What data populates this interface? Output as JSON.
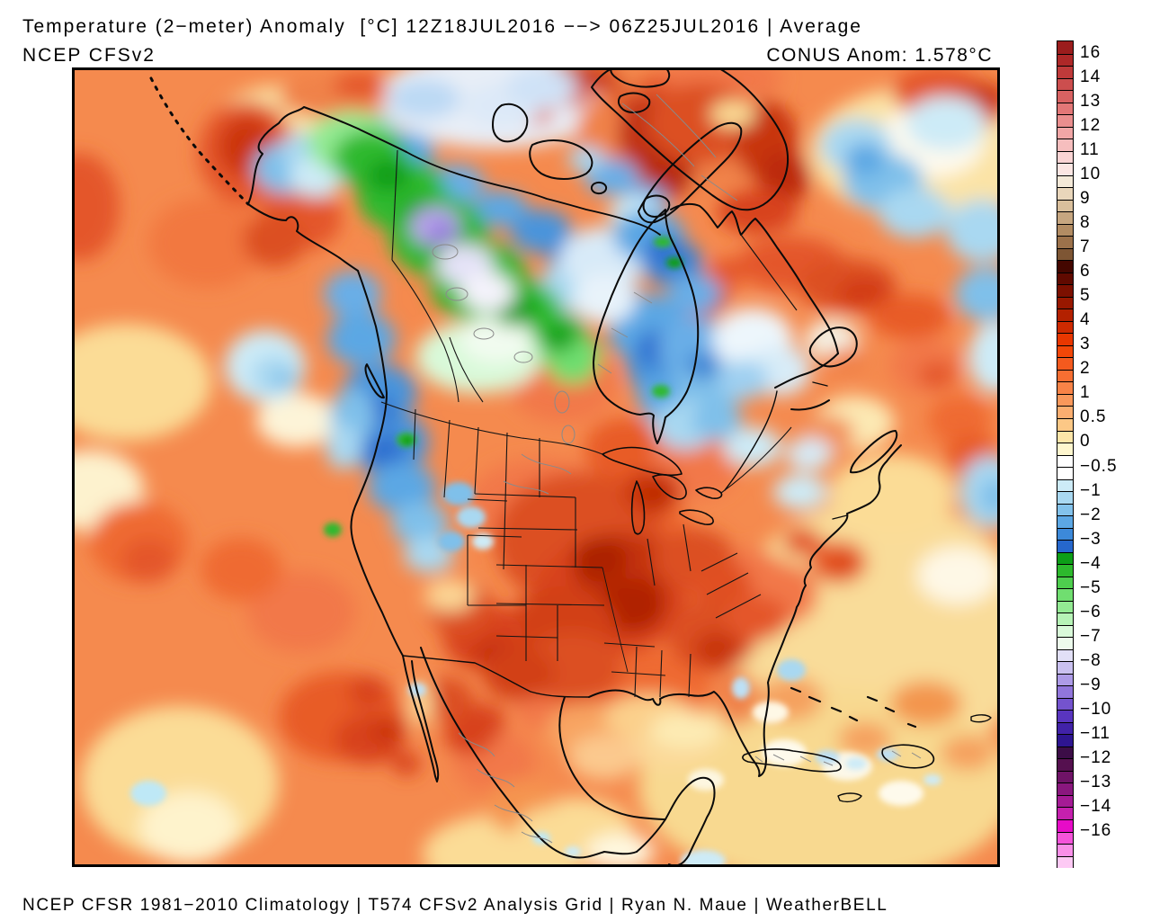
{
  "header": {
    "title_line1": "Temperature (2−meter) Anomaly  [°C] 12Z18JUL2016 −−> 06Z25JUL2016 | Average",
    "model_label": "NCEP CFSv2",
    "conus_anomaly_label": "CONUS Anom: 1.578°C"
  },
  "footer": {
    "credit": "NCEP CFSR 1981−2010 Climatology | T574 CFSv2 Analysis Grid | Ryan N. Maue | WeatherBELL"
  },
  "chart_data": {
    "type": "heatmap",
    "subtype": "filled-contour-anomaly-map",
    "title": "Temperature (2-meter) Anomaly [°C]",
    "model": "NCEP CFSv2",
    "climatology": "NCEP CFSR 1981-2010",
    "grid": "T574 CFSv2 Analysis Grid",
    "credit": "Ryan N. Maue | WeatherBELL",
    "period_start": "12Z18JUL2016",
    "period_end": "06Z25JUL2016",
    "aggregation": "Average",
    "units": "°C",
    "region": "North America",
    "conus_mean_anomaly_c": 1.578,
    "colorbar": {
      "orientation": "vertical",
      "labels": [
        "16",
        "14",
        "13",
        "12",
        "11",
        "10",
        "9",
        "8",
        "7",
        "6",
        "5",
        "4",
        "3",
        "2",
        "1",
        "0.5",
        "0",
        "−0.5",
        "−1",
        "−2",
        "−3",
        "−4",
        "−5",
        "−6",
        "−7",
        "−8",
        "−9",
        "−10",
        "−11",
        "−12",
        "−13",
        "−14",
        "−16"
      ],
      "colors": [
        "#9B1D1D",
        "#AE2828",
        "#BF3A3A",
        "#CC4E4E",
        "#D86262",
        "#E27777",
        "#EA8E8E",
        "#F1A6A6",
        "#F6BEBE",
        "#FAD4D4",
        "#FCE6E3",
        "#F4E9D8",
        "#E9D6BB",
        "#D9BF9C",
        "#C6A680",
        "#B28C63",
        "#9C724B",
        "#7E5634",
        "#440700",
        "#600A00",
        "#7C1000",
        "#981800",
        "#B32100",
        "#CE2A00",
        "#E93700",
        "#F24708",
        "#F45A1E",
        "#F66E32",
        "#F88347",
        "#F9985B",
        "#FBAE70",
        "#FCC886",
        "#FDE5A8",
        "#FEF6CE",
        "#FFFFFF",
        "#FFFFFF",
        "#CDEBF7",
        "#A9D8F1",
        "#83C2EB",
        "#5CA7E4",
        "#3C89D9",
        "#2667CC",
        "#0D9E17",
        "#2DB92D",
        "#4ECE4E",
        "#70DE70",
        "#93EA93",
        "#B6F3B6",
        "#D9F9D9",
        "#EDFBEC",
        "#E2E0F7",
        "#CAC1F0",
        "#AD9BE7",
        "#9176DB",
        "#7453CE",
        "#5935BF",
        "#4122A8",
        "#2E1590",
        "#3C0D47",
        "#55104F",
        "#6F1367",
        "#8A177E",
        "#A51B95",
        "#C520AE",
        "#E70BC8",
        "#F553DA",
        "#FA8FE8",
        "#FDC9F4"
      ]
    },
    "regional_anomalies": [
      {
        "region": "Central US Plains / Midwest",
        "anomaly_c": "+4 to +7"
      },
      {
        "region": "Michigan / Great Lakes",
        "anomaly_c": "+4 to +5"
      },
      {
        "region": "Southeast US / Georgia",
        "anomaly_c": "+3 to +5"
      },
      {
        "region": "Pacific Northwest / Northern Rockies",
        "anomaly_c": "-1 to -3"
      },
      {
        "region": "Yukon / Northwest Territories",
        "anomaly_c": "-4 to -8 (locally -9 purple core)"
      },
      {
        "region": "Alaska interior",
        "anomaly_c": "-1 to -2"
      },
      {
        "region": "Bering Sea / Gulf of Alaska",
        "anomaly_c": "+3 to +6"
      },
      {
        "region": "Hudson Bay east / Quebec",
        "anomaly_c": "-1 to -3"
      },
      {
        "region": "Greenland",
        "anomaly_c": "+3 to +6"
      },
      {
        "region": "Baja California / NW Mexico",
        "anomaly_c": "+3 to +5"
      },
      {
        "region": "Eastern Pacific ocean",
        "anomaly_c": "+1 to +3"
      },
      {
        "region": "North Atlantic blobs",
        "anomaly_c": "-1 to -2"
      },
      {
        "region": "Caribbean / Gulf of Mexico",
        "anomaly_c": "0 to +1"
      }
    ]
  }
}
